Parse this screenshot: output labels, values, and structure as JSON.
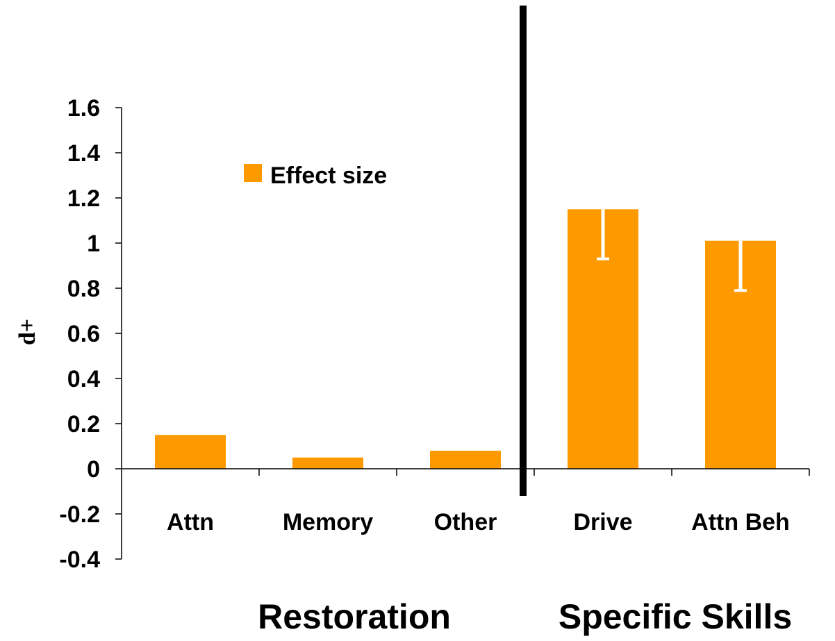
{
  "chart_data": {
    "type": "bar",
    "title": "",
    "xlabel": "",
    "ylabel": "d+",
    "ylim": [
      -0.4,
      1.6
    ],
    "yticks": [
      "1.6",
      "1.4",
      "1.2",
      "1",
      "0.8",
      "0.6",
      "0.4",
      "0.2",
      "0",
      "-0.2",
      "-0.4"
    ],
    "ytick_values": [
      1.6,
      1.4,
      1.2,
      1.0,
      0.8,
      0.6,
      0.4,
      0.2,
      0.0,
      -0.2,
      -0.4
    ],
    "categories": [
      "Attn",
      "Memory",
      "Other",
      "Drive",
      "Attn Beh"
    ],
    "series": [
      {
        "name": "Effect size",
        "color": "#ff9900",
        "values": [
          0.15,
          0.05,
          0.08,
          1.15,
          1.01
        ],
        "error_lower": [
          0.15,
          0.05,
          0.08,
          0.93,
          0.79
        ]
      }
    ],
    "groups": [
      {
        "label": "Restoration",
        "categories": [
          "Attn",
          "Memory",
          "Other"
        ]
      },
      {
        "label": "Specific Skills",
        "categories": [
          "Drive",
          "Attn Beh"
        ]
      }
    ],
    "legend": {
      "position": "top-left",
      "label": "Effect size"
    },
    "grid": false,
    "divider_between_groups": true
  }
}
